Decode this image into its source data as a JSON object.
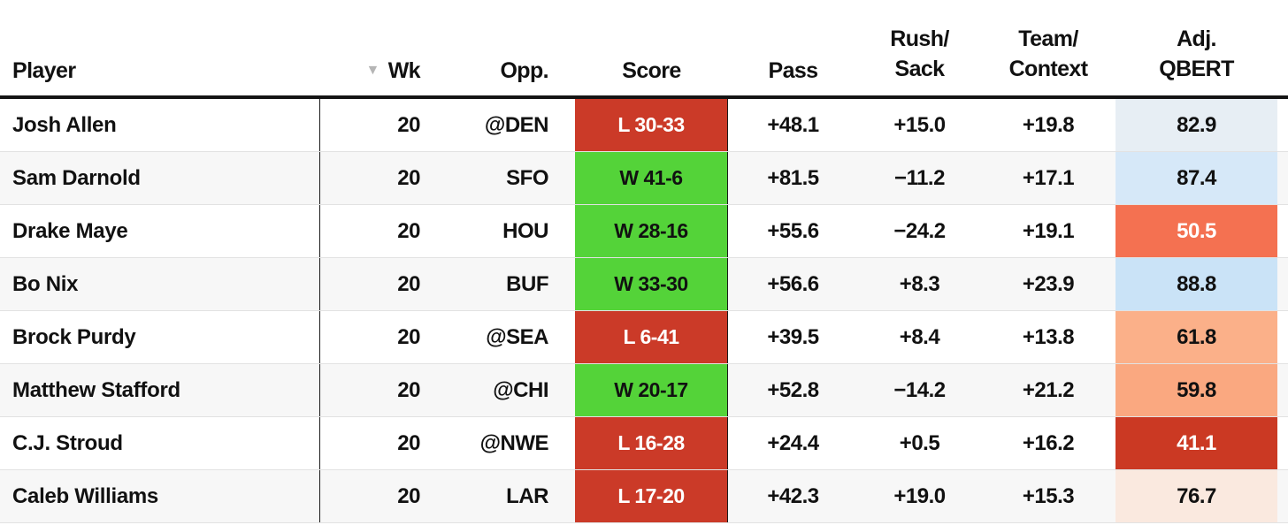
{
  "table": {
    "columns": [
      {
        "id": "player",
        "label": "Player"
      },
      {
        "id": "wk",
        "label": "Wk",
        "sort_indicator": "▼",
        "sorted": "desc"
      },
      {
        "id": "opp",
        "label": "Opp."
      },
      {
        "id": "score",
        "label": "Score"
      },
      {
        "id": "pass",
        "label": "Pass"
      },
      {
        "id": "rush_sack",
        "label_line1": "Rush/",
        "label_line2": "Sack"
      },
      {
        "id": "team_context",
        "label_line1": "Team/",
        "label_line2": "Context"
      },
      {
        "id": "adj_qbert",
        "label_line1": "Adj.",
        "label_line2": "QBERT"
      }
    ],
    "rows": [
      {
        "player": "Josh Allen",
        "wk": "20",
        "opp": "@DEN",
        "score": "L 30-33",
        "result": "loss",
        "pass": "+48.1",
        "rush_sack": "+15.0",
        "team_context": "+19.8",
        "qbert": "82.9",
        "qbert_bg": "#e7eef4",
        "qbert_text": "#111111"
      },
      {
        "player": "Sam Darnold",
        "wk": "20",
        "opp": "SFO",
        "score": "W 41-6",
        "result": "win",
        "pass": "+81.5",
        "rush_sack": "−11.2",
        "team_context": "+17.1",
        "qbert": "87.4",
        "qbert_bg": "#d6e8f8",
        "qbert_text": "#111111"
      },
      {
        "player": "Drake Maye",
        "wk": "20",
        "opp": "HOU",
        "score": "W 28-16",
        "result": "win",
        "pass": "+55.6",
        "rush_sack": "−24.2",
        "team_context": "+19.1",
        "qbert": "50.5",
        "qbert_bg": "#f47151",
        "qbert_text": "#ffffff"
      },
      {
        "player": "Bo Nix",
        "wk": "20",
        "opp": "BUF",
        "score": "W 33-30",
        "result": "win",
        "pass": "+56.6",
        "rush_sack": "+8.3",
        "team_context": "+23.9",
        "qbert": "88.8",
        "qbert_bg": "#cae3f7",
        "qbert_text": "#111111"
      },
      {
        "player": "Brock Purdy",
        "wk": "20",
        "opp": "@SEA",
        "score": "L 6-41",
        "result": "loss",
        "pass": "+39.5",
        "rush_sack": "+8.4",
        "team_context": "+13.8",
        "qbert": "61.8",
        "qbert_bg": "#fbb089",
        "qbert_text": "#111111"
      },
      {
        "player": "Matthew Stafford",
        "wk": "20",
        "opp": "@CHI",
        "score": "W 20-17",
        "result": "win",
        "pass": "+52.8",
        "rush_sack": "−14.2",
        "team_context": "+21.2",
        "qbert": "59.8",
        "qbert_bg": "#faa880",
        "qbert_text": "#111111"
      },
      {
        "player": "C.J. Stroud",
        "wk": "20",
        "opp": "@NWE",
        "score": "L 16-28",
        "result": "loss",
        "pass": "+24.4",
        "rush_sack": "+0.5",
        "team_context": "+16.2",
        "qbert": "41.1",
        "qbert_bg": "#cb3923",
        "qbert_text": "#ffffff"
      },
      {
        "player": "Caleb Williams",
        "wk": "20",
        "opp": "LAR",
        "score": "L 17-20",
        "result": "loss",
        "pass": "+42.3",
        "rush_sack": "+19.0",
        "team_context": "+15.3",
        "qbert": "76.7",
        "qbert_bg": "#fae9df",
        "qbert_text": "#111111"
      }
    ]
  },
  "colors": {
    "win_bg": "#54d339",
    "win_text": "#111111",
    "loss_bg": "#cb3a28",
    "loss_text": "#ffffff",
    "stripe_bg": "#f7f7f7",
    "header_border": "#141414",
    "column_border": "#1b1b1b",
    "row_divider": "#e2e2e2",
    "sort_icon_color": "#b5b5b5"
  }
}
